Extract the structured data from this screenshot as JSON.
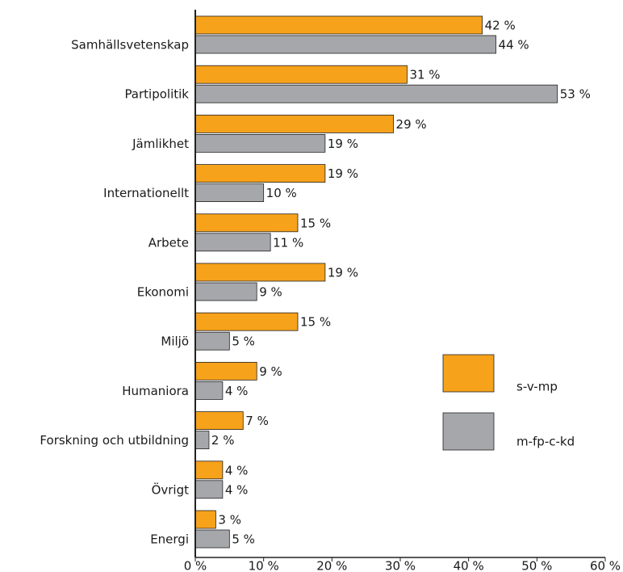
{
  "chart_data": {
    "type": "hbar",
    "categories": [
      "Samhällsvetenskap",
      "Partipolitik",
      "Jämlikhet",
      "Internationellt",
      "Arbete",
      "Ekonomi",
      "Miljö",
      "Humaniora",
      "Forskning och utbildning",
      "Övrigt",
      "Energi"
    ],
    "series": [
      {
        "name": "s-v-mp",
        "color": "#f7a21b",
        "values": [
          42,
          31,
          29,
          19,
          15,
          19,
          15,
          9,
          7,
          4,
          3
        ],
        "value_labels": [
          "42 %",
          "31 %",
          "29 %",
          "19 %",
          "15 %",
          "19 %",
          "15 %",
          "9 %",
          "7 %",
          "4 %",
          "3 %"
        ]
      },
      {
        "name": "m-fp-c-kd",
        "color": "#a6a7ab",
        "values": [
          44,
          53,
          19,
          10,
          11,
          9,
          5,
          4,
          2,
          4,
          5
        ],
        "value_labels": [
          "44 %",
          "53 %",
          "19 %",
          "10 %",
          "11 %",
          "9 %",
          "5 %",
          "4 %",
          "2 %",
          "4 %",
          "5 %"
        ]
      }
    ],
    "xlim": [
      0,
      60
    ],
    "xticks": [
      {
        "value": 0,
        "label": "0 %"
      },
      {
        "value": 10,
        "label": "10 %"
      },
      {
        "value": 20,
        "label": "20 %"
      },
      {
        "value": 30,
        "label": "30 %"
      },
      {
        "value": 40,
        "label": "40 %"
      },
      {
        "value": 50,
        "label": "50 %"
      },
      {
        "value": 60,
        "label": "60 %"
      }
    ],
    "legend": "right"
  }
}
